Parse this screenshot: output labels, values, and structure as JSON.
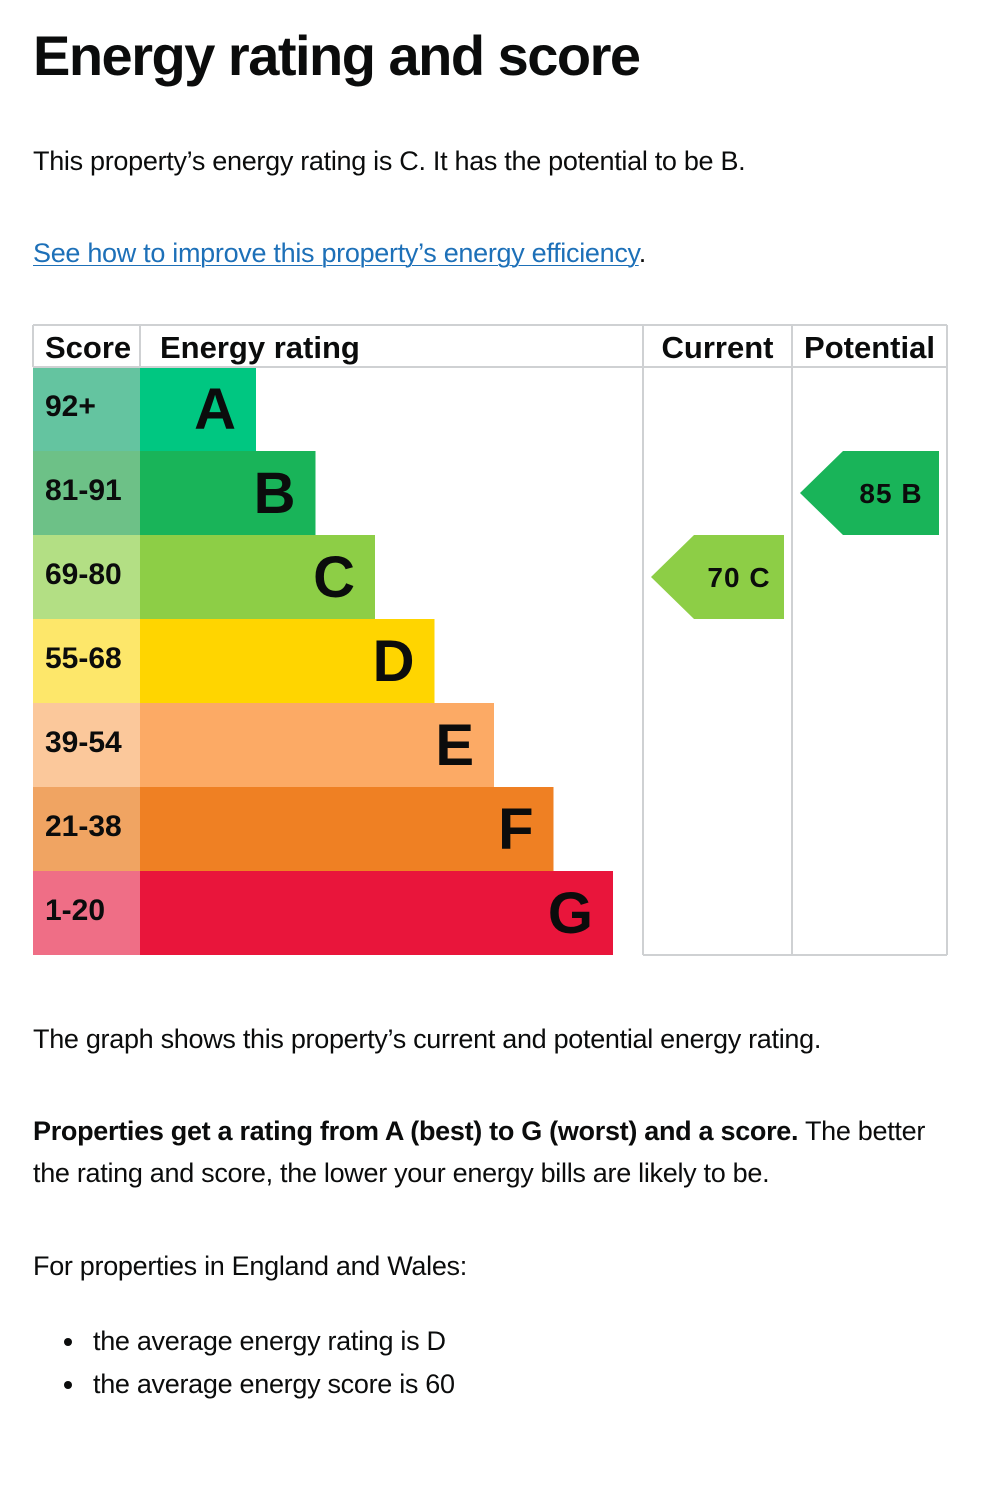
{
  "page": {
    "title": "Energy rating and score",
    "intro": "This property’s energy rating is C. It has the potential to be B.",
    "improve_link": "See how to improve this property’s energy efficiency",
    "improve_link_suffix": ".",
    "graph_note": "The graph shows this property’s current and potential energy rating.",
    "ratings_bold": "Properties get a rating from A (best) to G (worst) and a score.",
    "ratings_rest": " The better the rating and score, the lower your energy bills are likely to be.",
    "region_intro": "For properties in England and Wales:",
    "averages": [
      "the average energy rating is D",
      "the average energy score is 60"
    ]
  },
  "chart_data": {
    "type": "table",
    "headers": {
      "score": "Score",
      "rating": "Energy rating",
      "current": "Current",
      "potential": "Potential"
    },
    "bands": [
      {
        "letter": "A",
        "range": "92+",
        "color": "#00c781",
        "light": "#64c4a0"
      },
      {
        "letter": "B",
        "range": "81-91",
        "color": "#19b459",
        "light": "#6dc187"
      },
      {
        "letter": "C",
        "range": "69-80",
        "color": "#8dce46",
        "light": "#b3df84"
      },
      {
        "letter": "D",
        "range": "55-68",
        "color": "#ffd500",
        "light": "#fde76a"
      },
      {
        "letter": "E",
        "range": "39-54",
        "color": "#fcaa65",
        "light": "#fbc89b"
      },
      {
        "letter": "F",
        "range": "21-38",
        "color": "#ef8023",
        "light": "#f0a462"
      },
      {
        "letter": "G",
        "range": "1-20",
        "color": "#e9153b",
        "light": "#ef6e86"
      }
    ],
    "current": {
      "score": 70,
      "band": "C",
      "label": "70 C"
    },
    "potential": {
      "score": 85,
      "band": "B",
      "label": "85 B"
    }
  }
}
